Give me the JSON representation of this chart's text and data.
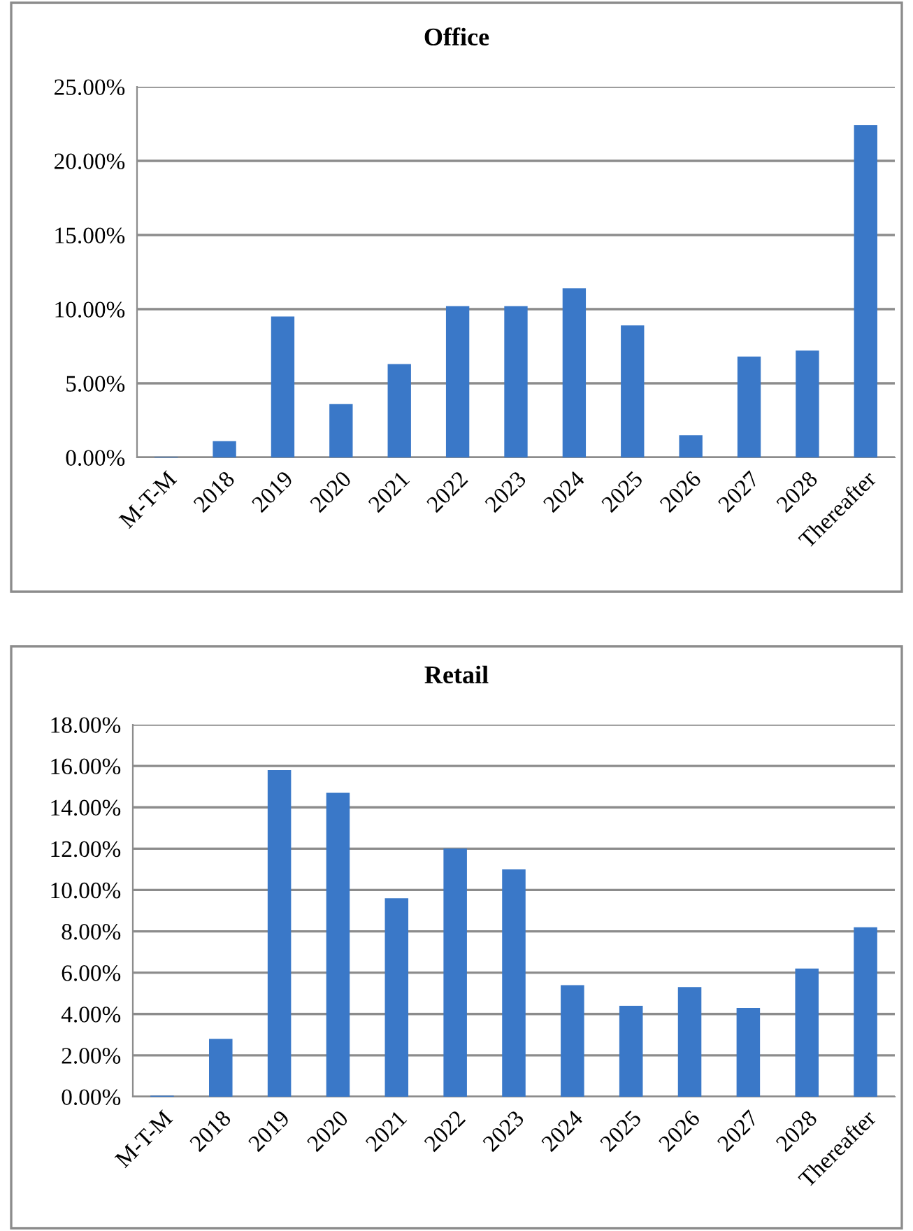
{
  "chart_data": [
    {
      "type": "bar",
      "title": "Office",
      "categories": [
        "M-T-M",
        "2018",
        "2019",
        "2020",
        "2021",
        "2022",
        "2023",
        "2024",
        "2025",
        "2026",
        "2027",
        "2028",
        "Thereafter"
      ],
      "values": [
        0.05,
        1.1,
        9.5,
        3.6,
        6.3,
        10.2,
        10.2,
        11.4,
        8.9,
        1.5,
        6.8,
        7.2,
        22.4
      ],
      "color": "#3a78c8",
      "ylim": [
        0,
        25
      ],
      "yticks": [
        {
          "value": 0,
          "label": "0.00%"
        },
        {
          "value": 5,
          "label": "5.00%"
        },
        {
          "value": 10,
          "label": "10.00%"
        },
        {
          "value": 15,
          "label": "15.00%"
        },
        {
          "value": 20,
          "label": "20.00%"
        },
        {
          "value": 25,
          "label": "25.00%"
        }
      ],
      "grid": "y",
      "legend": false
    },
    {
      "type": "bar",
      "title": "Retail",
      "categories": [
        "M-T-M",
        "2018",
        "2019",
        "2020",
        "2021",
        "2022",
        "2023",
        "2024",
        "2025",
        "2026",
        "2027",
        "2028",
        "Thereafter"
      ],
      "values": [
        0.05,
        2.8,
        15.8,
        14.7,
        9.6,
        12.0,
        11.0,
        5.4,
        4.4,
        5.3,
        4.3,
        6.2,
        8.2
      ],
      "color": "#3a78c8",
      "ylim": [
        0,
        18
      ],
      "yticks": [
        {
          "value": 0,
          "label": "0.00%"
        },
        {
          "value": 2,
          "label": "2.00%"
        },
        {
          "value": 4,
          "label": "4.00%"
        },
        {
          "value": 6,
          "label": "6.00%"
        },
        {
          "value": 8,
          "label": "8.00%"
        },
        {
          "value": 10,
          "label": "10.00%"
        },
        {
          "value": 12,
          "label": "12.00%"
        },
        {
          "value": 14,
          "label": "14.00%"
        },
        {
          "value": 16,
          "label": "16.00%"
        },
        {
          "value": 18,
          "label": "18.00%"
        }
      ],
      "grid": "y",
      "legend": false
    }
  ]
}
